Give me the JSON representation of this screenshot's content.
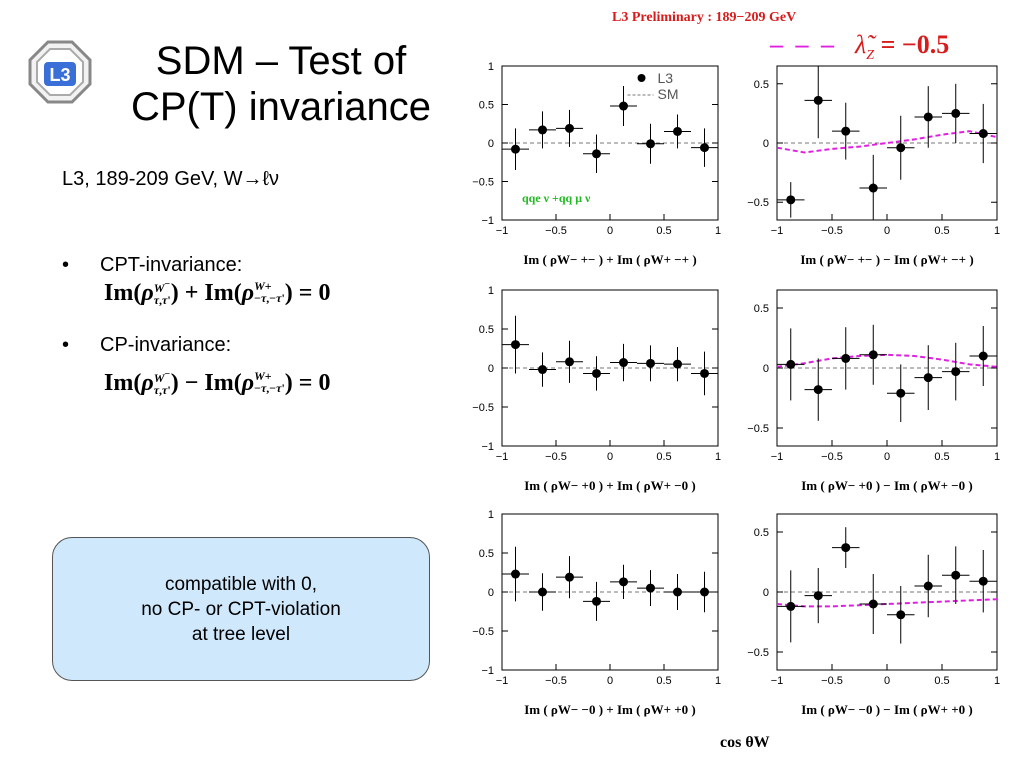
{
  "slide": {
    "title_line1": "SDM – Test of",
    "title_line2": "CP(T) invariance",
    "subtitle": "L3, 189-209 GeV, W→ℓν",
    "bullet1": "CPT-invariance:",
    "bullet2": "CP-invariance:",
    "bullet_symbol": "•",
    "formula1": {
      "op": "+",
      "rhs": "= 0"
    },
    "formula2": {
      "op": "−",
      "rhs": "= 0"
    },
    "callout": {
      "line1": "compatible with 0,",
      "line2": "no CP- or CPT-violation",
      "line3": "at tree level"
    },
    "logo_text": "L3"
  },
  "chart_header": {
    "prelim": "L3 Preliminary : 189−209 GeV",
    "lambda_dash": "– – –",
    "lambda_label": "λ̃",
    "lambda_sub": "Z",
    "lambda_value": "= −0.5"
  },
  "global_xlabel": "cos θW",
  "chart_data": [
    {
      "type": "scatter",
      "panel": "left",
      "row": 0,
      "xlabel": "Im ( ρ^{W−}_{+−} ) + Im ( ρ^{W+}_{−+} )",
      "xlim": [
        -1,
        1
      ],
      "ylim": [
        -1,
        1
      ],
      "yticks": [
        -1,
        -0.5,
        0,
        0.5,
        1
      ],
      "xticks": [
        -1,
        -0.5,
        0,
        0.5,
        1
      ],
      "legend": [
        {
          "name": "L3",
          "marker": "dot"
        },
        {
          "name": "SM",
          "marker": "dashed"
        }
      ],
      "annotation": "qqe ν +qq μ ν",
      "points": [
        {
          "x": -0.875,
          "y": -0.08,
          "err": 0.27
        },
        {
          "x": -0.625,
          "y": 0.17,
          "err": 0.24
        },
        {
          "x": -0.375,
          "y": 0.19,
          "err": 0.24
        },
        {
          "x": -0.125,
          "y": -0.14,
          "err": 0.25
        },
        {
          "x": 0.125,
          "y": 0.48,
          "err": 0.26
        },
        {
          "x": 0.375,
          "y": -0.01,
          "err": 0.26
        },
        {
          "x": 0.625,
          "y": 0.15,
          "err": 0.22
        },
        {
          "x": 0.875,
          "y": -0.06,
          "err": 0.25
        }
      ]
    },
    {
      "type": "scatter",
      "panel": "right",
      "row": 0,
      "xlabel": "Im ( ρ^{W−}_{+−} ) − Im ( ρ^{W+}_{−+} )",
      "xlim": [
        -1,
        1
      ],
      "ylim": [
        -0.65,
        0.65
      ],
      "yticks": [
        -0.5,
        0,
        0.5
      ],
      "xticks": [
        -1,
        -0.5,
        0,
        0.5,
        1
      ],
      "points": [
        {
          "x": -0.875,
          "y": -0.48,
          "err": 0.15
        },
        {
          "x": -0.625,
          "y": 0.36,
          "err": 0.32
        },
        {
          "x": -0.375,
          "y": 0.1,
          "err": 0.24
        },
        {
          "x": -0.125,
          "y": -0.38,
          "err": 0.28
        },
        {
          "x": 0.125,
          "y": -0.04,
          "err": 0.27
        },
        {
          "x": 0.375,
          "y": 0.22,
          "err": 0.26
        },
        {
          "x": 0.625,
          "y": 0.25,
          "err": 0.25
        },
        {
          "x": 0.875,
          "y": 0.08,
          "err": 0.25
        }
      ],
      "model": {
        "x": [
          -1,
          -0.75,
          -0.5,
          -0.25,
          0,
          0.25,
          0.5,
          0.75,
          1
        ],
        "y": [
          -0.04,
          -0.08,
          -0.05,
          -0.03,
          0.0,
          0.03,
          0.07,
          0.1,
          0.05
        ]
      }
    },
    {
      "type": "scatter",
      "panel": "left",
      "row": 1,
      "xlabel": "Im ( ρ^{W−}_{+0} ) + Im ( ρ^{W+}_{−0} )",
      "xlim": [
        -1,
        1
      ],
      "ylim": [
        -1,
        1
      ],
      "yticks": [
        -1,
        -0.5,
        0,
        0.5,
        1
      ],
      "xticks": [
        -1,
        -0.5,
        0,
        0.5,
        1
      ],
      "points": [
        {
          "x": -0.875,
          "y": 0.3,
          "err": 0.37
        },
        {
          "x": -0.625,
          "y": -0.02,
          "err": 0.22
        },
        {
          "x": -0.375,
          "y": 0.08,
          "err": 0.27
        },
        {
          "x": -0.125,
          "y": -0.07,
          "err": 0.22
        },
        {
          "x": 0.125,
          "y": 0.07,
          "err": 0.24
        },
        {
          "x": 0.375,
          "y": 0.06,
          "err": 0.23
        },
        {
          "x": 0.625,
          "y": 0.05,
          "err": 0.22
        },
        {
          "x": 0.875,
          "y": -0.07,
          "err": 0.28
        }
      ]
    },
    {
      "type": "scatter",
      "panel": "right",
      "row": 1,
      "xlabel": "Im ( ρ^{W−}_{+0} ) − Im ( ρ^{W+}_{−0} )",
      "xlim": [
        -1,
        1
      ],
      "ylim": [
        -0.65,
        0.65
      ],
      "yticks": [
        -0.5,
        0,
        0.5
      ],
      "xticks": [
        -1,
        -0.5,
        0,
        0.5,
        1
      ],
      "points": [
        {
          "x": -0.875,
          "y": 0.03,
          "err": 0.3
        },
        {
          "x": -0.625,
          "y": -0.18,
          "err": 0.26
        },
        {
          "x": -0.375,
          "y": 0.08,
          "err": 0.26
        },
        {
          "x": -0.125,
          "y": 0.11,
          "err": 0.25
        },
        {
          "x": 0.125,
          "y": -0.21,
          "err": 0.24
        },
        {
          "x": 0.375,
          "y": -0.08,
          "err": 0.27
        },
        {
          "x": 0.625,
          "y": -0.03,
          "err": 0.24
        },
        {
          "x": 0.875,
          "y": 0.1,
          "err": 0.25
        }
      ],
      "model": {
        "x": [
          -1,
          -0.75,
          -0.5,
          -0.25,
          0,
          0.25,
          0.5,
          0.75,
          1
        ],
        "y": [
          0.01,
          0.04,
          0.08,
          0.1,
          0.11,
          0.1,
          0.07,
          0.03,
          0.01
        ]
      }
    },
    {
      "type": "scatter",
      "panel": "left",
      "row": 2,
      "xlabel": "Im ( ρ^{W−}_{−0} ) + Im ( ρ^{W+}_{+0} )",
      "xlim": [
        -1,
        1
      ],
      "ylim": [
        -1,
        1
      ],
      "yticks": [
        -1,
        -0.5,
        0,
        0.5,
        1
      ],
      "xticks": [
        -1,
        -0.5,
        0,
        0.5,
        1
      ],
      "points": [
        {
          "x": -0.875,
          "y": 0.23,
          "err": 0.35
        },
        {
          "x": -0.625,
          "y": 0.0,
          "err": 0.24
        },
        {
          "x": -0.375,
          "y": 0.19,
          "err": 0.27
        },
        {
          "x": -0.125,
          "y": -0.12,
          "err": 0.25
        },
        {
          "x": 0.125,
          "y": 0.13,
          "err": 0.22
        },
        {
          "x": 0.375,
          "y": 0.05,
          "err": 0.23
        },
        {
          "x": 0.625,
          "y": 0.0,
          "err": 0.23
        },
        {
          "x": 0.875,
          "y": 0.0,
          "err": 0.26
        }
      ]
    },
    {
      "type": "scatter",
      "panel": "right",
      "row": 2,
      "xlabel": "Im ( ρ^{W−}_{−0} ) − Im ( ρ^{W+}_{+0} )",
      "xlim": [
        -1,
        1
      ],
      "ylim": [
        -0.65,
        0.65
      ],
      "yticks": [
        -0.5,
        0,
        0.5
      ],
      "xticks": [
        -1,
        -0.5,
        0,
        0.5,
        1
      ],
      "points": [
        {
          "x": -0.875,
          "y": -0.12,
          "err": 0.3
        },
        {
          "x": -0.625,
          "y": -0.03,
          "err": 0.23
        },
        {
          "x": -0.375,
          "y": 0.37,
          "err": 0.17
        },
        {
          "x": -0.125,
          "y": -0.1,
          "err": 0.25
        },
        {
          "x": 0.125,
          "y": -0.19,
          "err": 0.24
        },
        {
          "x": 0.375,
          "y": 0.05,
          "err": 0.26
        },
        {
          "x": 0.625,
          "y": 0.14,
          "err": 0.24
        },
        {
          "x": 0.875,
          "y": 0.09,
          "err": 0.26
        }
      ],
      "model": {
        "x": [
          -1,
          -0.75,
          -0.5,
          -0.25,
          0,
          0.25,
          0.5,
          0.75,
          1
        ],
        "y": [
          -0.1,
          -0.12,
          -0.12,
          -0.11,
          -0.1,
          -0.09,
          -0.08,
          -0.07,
          -0.06
        ]
      }
    }
  ],
  "colors": {
    "accent": "#d81b1b",
    "model_line": "#e020e0",
    "callout_bg": "#cfe8fb",
    "annotation": "#22bb22"
  }
}
